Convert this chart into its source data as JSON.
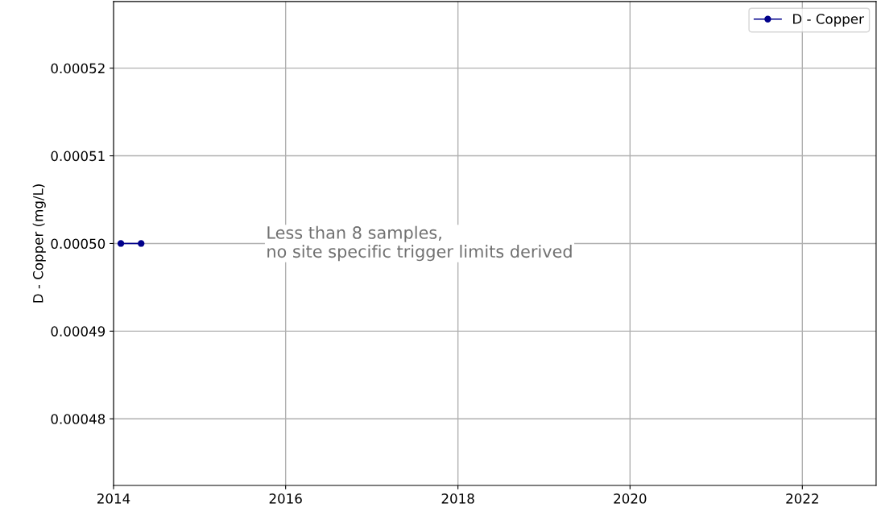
{
  "chart_data": {
    "type": "line",
    "ylabel": "D - Copper (mg/L)",
    "x": [
      "2014-02-01",
      "2014-04-28"
    ],
    "series": [
      {
        "name": "D - Copper",
        "color": "#00008b",
        "values": [
          0.0005,
          0.0005
        ]
      }
    ],
    "xlim": [
      "2014-01-01",
      "2022-11-10"
    ],
    "xticks": [
      "2014",
      "2016",
      "2018",
      "2020",
      "2022"
    ],
    "ylim": [
      0.0004724,
      0.0005276
    ],
    "yticks": [
      0.00048,
      0.00049,
      {
        "value": 0.0005,
        "label": "0.00050"
      },
      0.00051,
      0.00052
    ],
    "annotations": [
      "Less than 8 samples,\nno site specific trigger limits derived"
    ],
    "grid": true,
    "legend": "top right",
    "marker": "circle",
    "line_style": "solid"
  }
}
